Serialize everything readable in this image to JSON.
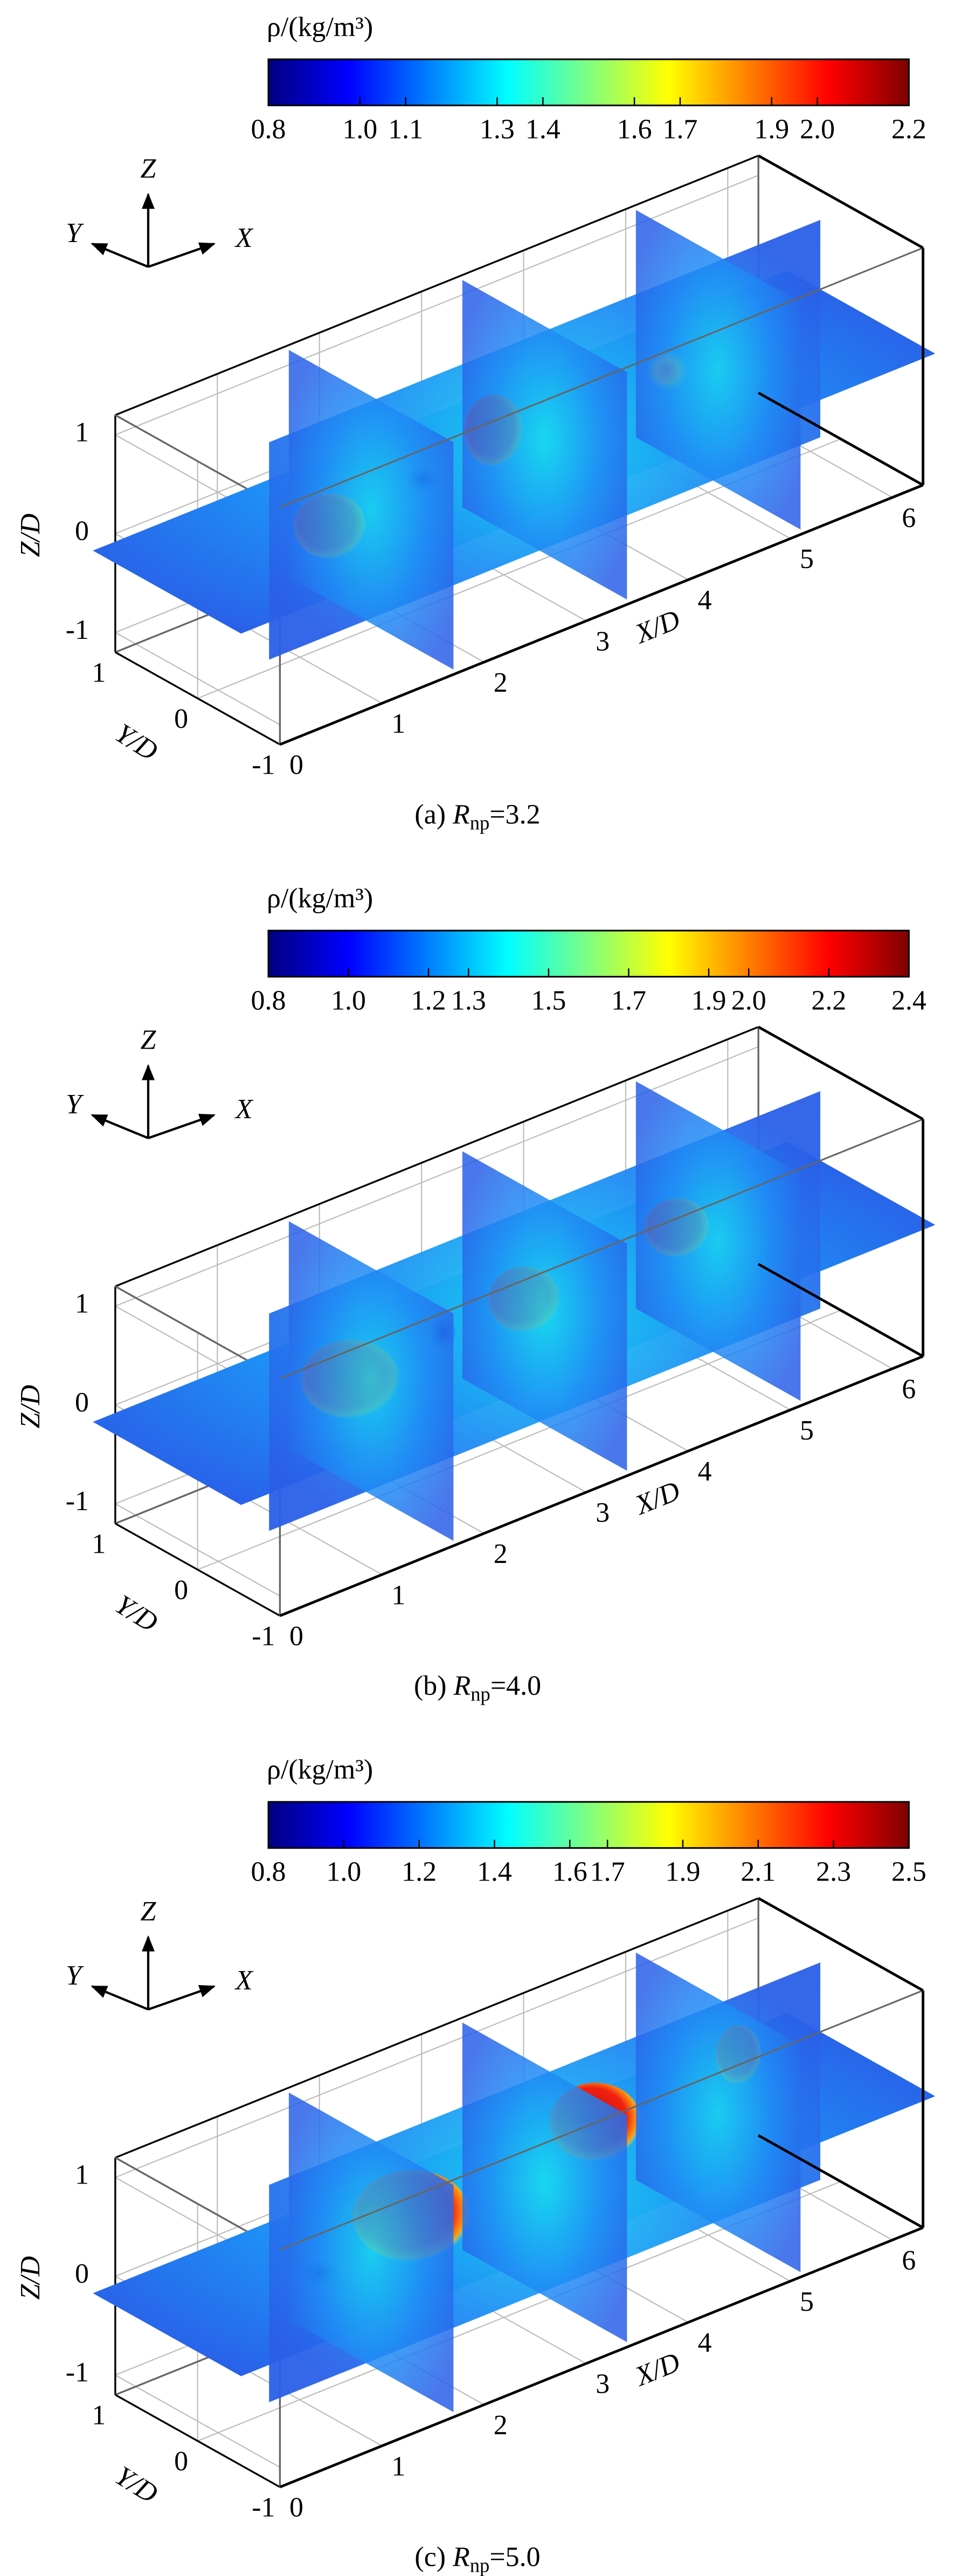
{
  "chart_data": [
    {
      "type": "contour3d",
      "colorbar": {
        "title": "ρ/(kg/m³)",
        "clim": [
          0.8,
          2.2
        ],
        "ticks": [
          0.8,
          {
            "value": 1,
            "label": "1.0"
          },
          1.1,
          1.3,
          1.4,
          1.6,
          1.7,
          1.9,
          {
            "value": 2,
            "label": "2.0"
          },
          2.2
        ],
        "colors": [
          "#00007f",
          "#0000ff",
          "#007fff",
          "#00ffff",
          "#7fff7f",
          "#ffff00",
          "#ff7f00",
          "#ff0000",
          "#7f0000"
        ]
      },
      "triad": [
        "X",
        "Y",
        "Z"
      ],
      "xlabel": "X/D",
      "ylabel": "Y/D",
      "zlabel": "Z/D",
      "xlim": [
        0,
        6.3
      ],
      "ylim": [
        -1,
        1
      ],
      "zlim": [
        -1.2,
        1.2
      ],
      "xticks": [
        0,
        1,
        2,
        3,
        4,
        5,
        6
      ],
      "yticks": [
        -1,
        0,
        1
      ],
      "zticks": [
        -1,
        0,
        1
      ],
      "caption": {
        "prefix": "(a) ",
        "symbol": "R",
        "subscript": "np",
        "value": "=3.2"
      }
    },
    {
      "type": "contour3d",
      "colorbar": {
        "title": "ρ/(kg/m³)",
        "clim": [
          0.8,
          2.4
        ],
        "ticks": [
          0.8,
          {
            "value": 1,
            "label": "1.0"
          },
          1.2,
          1.3,
          1.5,
          1.7,
          1.9,
          {
            "value": 2,
            "label": "2.0"
          },
          2.2,
          2.4
        ],
        "colors": [
          "#00007f",
          "#0000ff",
          "#007fff",
          "#00ffff",
          "#7fff7f",
          "#ffff00",
          "#ff7f00",
          "#ff0000",
          "#7f0000"
        ]
      },
      "triad": [
        "X",
        "Y",
        "Z"
      ],
      "xlabel": "X/D",
      "ylabel": "Y/D",
      "zlabel": "Z/D",
      "xlim": [
        0,
        6.3
      ],
      "ylim": [
        -1,
        1
      ],
      "zlim": [
        -1.2,
        1.2
      ],
      "xticks": [
        0,
        1,
        2,
        3,
        4,
        5,
        6
      ],
      "yticks": [
        -1,
        0,
        1
      ],
      "zticks": [
        -1,
        0,
        1
      ],
      "caption": {
        "prefix": "(b) ",
        "symbol": "R",
        "subscript": "np",
        "value": "=4.0"
      }
    },
    {
      "type": "contour3d",
      "colorbar": {
        "title": "ρ/(kg/m³)",
        "clim": [
          0.8,
          2.5
        ],
        "ticks": [
          0.8,
          {
            "value": 1,
            "label": "1.0"
          },
          1.2,
          1.4,
          1.6,
          1.7,
          1.9,
          2.1,
          2.3,
          2.5
        ],
        "colors": [
          "#00007f",
          "#0000ff",
          "#007fff",
          "#00ffff",
          "#7fff7f",
          "#ffff00",
          "#ff7f00",
          "#ff0000",
          "#7f0000"
        ]
      },
      "triad": [
        "X",
        "Y",
        "Z"
      ],
      "xlabel": "X/D",
      "ylabel": "Y/D",
      "zlabel": "Z/D",
      "xlim": [
        0,
        6.3
      ],
      "ylim": [
        -1,
        1
      ],
      "zlim": [
        -1.2,
        1.2
      ],
      "xticks": [
        0,
        1,
        2,
        3,
        4,
        5,
        6
      ],
      "yticks": [
        -1,
        0,
        1
      ],
      "zticks": [
        -1,
        0,
        1
      ],
      "caption": {
        "prefix": "(c) ",
        "symbol": "R",
        "subscript": "np",
        "value": "=5.0"
      }
    }
  ]
}
